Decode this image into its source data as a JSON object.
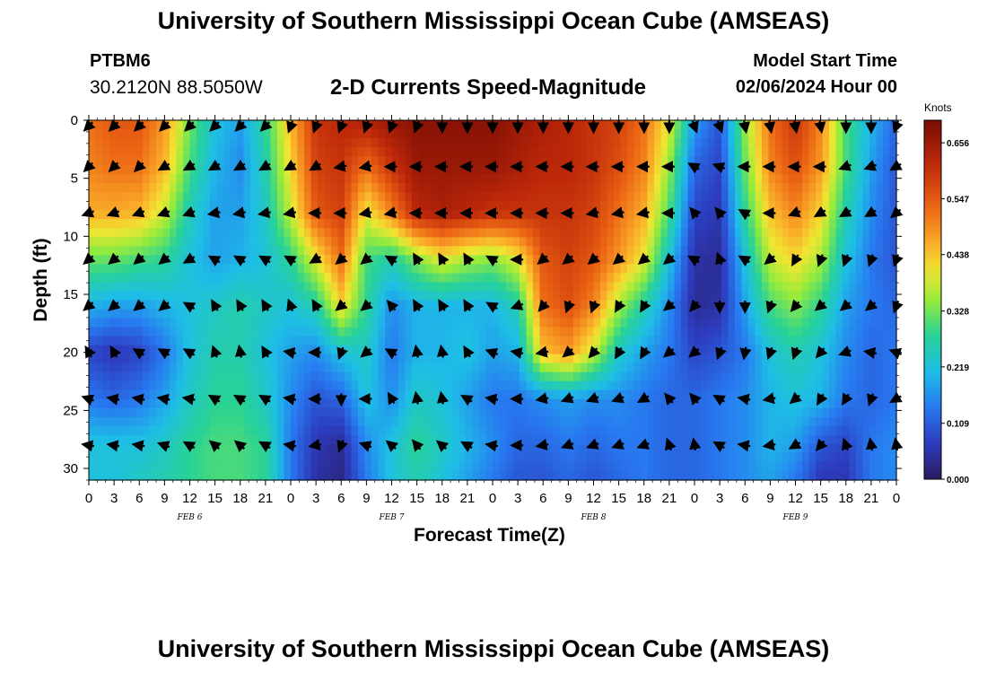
{
  "header": {
    "title": "University of Southern Mississippi Ocean Cube (AMSEAS)",
    "station_id": "PTBM6",
    "station_location": "30.2120N  88.5050W",
    "plot_title": "2-D Currents Speed-Magnitude",
    "model_start_label": "Model Start Time",
    "model_start_value": "02/06/2024 Hour 00"
  },
  "footer": {
    "title": "University of Southern Mississippi Ocean Cube (AMSEAS)"
  },
  "colors": {
    "low": "#2a1a5e",
    "mid": "#22c7b2",
    "high": "#7a0d03"
  },
  "chart_data": {
    "type": "heatmap",
    "title": "2-D Currents Speed-Magnitude",
    "xlabel": "Forecast Time(Z)",
    "ylabel": "Depth (ft)",
    "xlim": [
      0,
      96
    ],
    "ylim": [
      31,
      0
    ],
    "x_tick_labels": [
      "0",
      "3",
      "6",
      "9",
      "12",
      "15",
      "18",
      "21",
      "0",
      "3",
      "6",
      "9",
      "12",
      "15",
      "18",
      "21",
      "0",
      "3",
      "6",
      "9",
      "12",
      "15",
      "18",
      "21",
      "0",
      "3",
      "6",
      "9",
      "12",
      "15",
      "18",
      "21",
      "0"
    ],
    "y_tick_labels": [
      "0",
      "5",
      "10",
      "15",
      "20",
      "25",
      "30"
    ],
    "y_ticks": [
      0,
      5,
      10,
      15,
      20,
      25,
      30
    ],
    "date_labels": [
      {
        "label": "FEB 6",
        "hour": 12
      },
      {
        "label": "FEB 7",
        "hour": 36
      },
      {
        "label": "FEB 8",
        "hour": 60
      },
      {
        "label": "FEB 9",
        "hour": 84
      }
    ],
    "colorbar": {
      "units": "Knots",
      "ticks": [
        "0.656",
        "0.547",
        "0.438",
        "0.328",
        "0.219",
        "0.109",
        "0.000"
      ],
      "min": 0.0,
      "max": 0.7
    },
    "x_hours": [
      0,
      3,
      6,
      9,
      12,
      15,
      18,
      21,
      24,
      27,
      30,
      33,
      36,
      39,
      42,
      45,
      48,
      51,
      54,
      57,
      60,
      63,
      66,
      69,
      72,
      75,
      78,
      81,
      84,
      87,
      90,
      93,
      96
    ],
    "depths_ft": [
      0,
      4,
      8,
      12,
      16,
      20,
      24,
      28,
      31
    ],
    "speed_knots": [
      [
        0.52,
        0.55,
        0.55,
        0.48,
        0.33,
        0.22,
        0.18,
        0.28,
        0.45,
        0.6,
        0.62,
        0.64,
        0.66,
        0.68,
        0.68,
        0.68,
        0.68,
        0.66,
        0.64,
        0.62,
        0.6,
        0.58,
        0.52,
        0.4,
        0.18,
        0.1,
        0.35,
        0.52,
        0.6,
        0.5,
        0.3,
        0.2,
        0.12
      ],
      [
        0.5,
        0.52,
        0.52,
        0.45,
        0.3,
        0.2,
        0.16,
        0.26,
        0.42,
        0.58,
        0.6,
        0.52,
        0.6,
        0.66,
        0.66,
        0.66,
        0.66,
        0.64,
        0.62,
        0.62,
        0.6,
        0.56,
        0.5,
        0.35,
        0.12,
        0.08,
        0.32,
        0.5,
        0.56,
        0.48,
        0.3,
        0.18,
        0.1
      ],
      [
        0.46,
        0.46,
        0.45,
        0.38,
        0.25,
        0.18,
        0.18,
        0.24,
        0.38,
        0.55,
        0.58,
        0.4,
        0.5,
        0.62,
        0.64,
        0.62,
        0.6,
        0.6,
        0.6,
        0.6,
        0.58,
        0.52,
        0.46,
        0.3,
        0.08,
        0.06,
        0.28,
        0.44,
        0.5,
        0.42,
        0.26,
        0.16,
        0.1
      ],
      [
        0.32,
        0.32,
        0.3,
        0.28,
        0.22,
        0.18,
        0.2,
        0.22,
        0.28,
        0.4,
        0.52,
        0.3,
        0.26,
        0.34,
        0.4,
        0.36,
        0.34,
        0.4,
        0.55,
        0.58,
        0.55,
        0.48,
        0.4,
        0.22,
        0.05,
        0.04,
        0.22,
        0.38,
        0.42,
        0.36,
        0.22,
        0.14,
        0.1
      ],
      [
        0.2,
        0.18,
        0.18,
        0.2,
        0.22,
        0.24,
        0.26,
        0.24,
        0.22,
        0.26,
        0.42,
        0.28,
        0.16,
        0.2,
        0.2,
        0.2,
        0.2,
        0.26,
        0.52,
        0.56,
        0.5,
        0.36,
        0.26,
        0.16,
        0.04,
        0.05,
        0.18,
        0.3,
        0.34,
        0.28,
        0.18,
        0.14,
        0.12
      ],
      [
        0.08,
        0.06,
        0.08,
        0.14,
        0.22,
        0.26,
        0.26,
        0.22,
        0.18,
        0.16,
        0.22,
        0.24,
        0.14,
        0.2,
        0.2,
        0.22,
        0.18,
        0.2,
        0.44,
        0.48,
        0.38,
        0.24,
        0.18,
        0.14,
        0.08,
        0.1,
        0.14,
        0.22,
        0.26,
        0.22,
        0.16,
        0.12,
        0.14
      ],
      [
        0.14,
        0.12,
        0.14,
        0.18,
        0.24,
        0.28,
        0.28,
        0.24,
        0.16,
        0.1,
        0.12,
        0.22,
        0.16,
        0.24,
        0.22,
        0.18,
        0.14,
        0.14,
        0.16,
        0.18,
        0.16,
        0.16,
        0.14,
        0.12,
        0.12,
        0.14,
        0.16,
        0.2,
        0.22,
        0.2,
        0.14,
        0.12,
        0.14
      ],
      [
        0.22,
        0.22,
        0.22,
        0.24,
        0.28,
        0.3,
        0.3,
        0.28,
        0.14,
        0.06,
        0.04,
        0.16,
        0.22,
        0.28,
        0.24,
        0.2,
        0.16,
        0.12,
        0.12,
        0.14,
        0.12,
        0.14,
        0.14,
        0.12,
        0.12,
        0.14,
        0.16,
        0.2,
        0.18,
        0.1,
        0.08,
        0.14,
        0.16
      ],
      [
        0.22,
        0.22,
        0.24,
        0.26,
        0.28,
        0.3,
        0.3,
        0.28,
        0.14,
        0.05,
        0.03,
        0.14,
        0.22,
        0.26,
        0.22,
        0.18,
        0.14,
        0.1,
        0.1,
        0.12,
        0.1,
        0.12,
        0.14,
        0.12,
        0.12,
        0.14,
        0.16,
        0.18,
        0.14,
        0.06,
        0.06,
        0.14,
        0.16
      ]
    ],
    "vector_depths_ft": [
      0.5,
      4,
      8,
      12,
      16,
      20,
      24,
      28
    ],
    "vector_hours": [
      0,
      3,
      6,
      9,
      12,
      15,
      18,
      21,
      24,
      27,
      30,
      33,
      36,
      39,
      42,
      45,
      48,
      51,
      54,
      57,
      60,
      63,
      66,
      69,
      72,
      75,
      78,
      81,
      84,
      87,
      90,
      93,
      96
    ],
    "vector_direction_deg": [
      [
        225,
        225,
        225,
        225,
        225,
        225,
        225,
        225,
        200,
        200,
        200,
        200,
        200,
        200,
        180,
        180,
        180,
        180,
        180,
        180,
        180,
        180,
        180,
        180,
        160,
        160,
        170,
        170,
        170,
        170,
        180,
        180,
        200
      ],
      [
        225,
        225,
        225,
        240,
        240,
        240,
        240,
        240,
        240,
        240,
        260,
        260,
        270,
        270,
        270,
        270,
        270,
        270,
        270,
        270,
        270,
        270,
        270,
        270,
        300,
        290,
        270,
        270,
        270,
        270,
        250,
        250,
        240
      ],
      [
        250,
        250,
        250,
        250,
        250,
        260,
        260,
        260,
        260,
        270,
        270,
        260,
        260,
        270,
        270,
        270,
        270,
        270,
        270,
        270,
        260,
        260,
        260,
        270,
        320,
        320,
        300,
        270,
        250,
        240,
        240,
        240,
        230
      ],
      [
        230,
        230,
        230,
        230,
        240,
        300,
        300,
        300,
        300,
        240,
        230,
        230,
        300,
        330,
        330,
        330,
        300,
        270,
        230,
        230,
        230,
        230,
        230,
        230,
        300,
        340,
        300,
        230,
        210,
        200,
        200,
        200,
        200
      ],
      [
        230,
        230,
        230,
        230,
        300,
        330,
        330,
        330,
        340,
        330,
        230,
        230,
        320,
        330,
        330,
        330,
        300,
        250,
        220,
        200,
        200,
        210,
        210,
        230,
        220,
        180,
        180,
        200,
        220,
        230,
        230,
        230,
        200
      ],
      [
        330,
        330,
        300,
        300,
        300,
        340,
        350,
        330,
        280,
        270,
        200,
        230,
        300,
        350,
        350,
        330,
        290,
        280,
        260,
        230,
        220,
        210,
        210,
        230,
        230,
        200,
        190,
        200,
        200,
        220,
        250,
        280,
        290
      ],
      [
        290,
        280,
        280,
        280,
        280,
        300,
        300,
        300,
        280,
        270,
        180,
        270,
        330,
        350,
        350,
        300,
        280,
        270,
        260,
        250,
        250,
        250,
        240,
        320,
        320,
        300,
        280,
        260,
        230,
        210,
        210,
        200,
        240
      ],
      [
        280,
        280,
        280,
        290,
        300,
        310,
        310,
        300,
        280,
        260,
        200,
        290,
        310,
        320,
        310,
        300,
        280,
        270,
        260,
        250,
        250,
        250,
        250,
        340,
        350,
        300,
        280,
        260,
        240,
        220,
        340,
        350,
        350
      ]
    ]
  }
}
